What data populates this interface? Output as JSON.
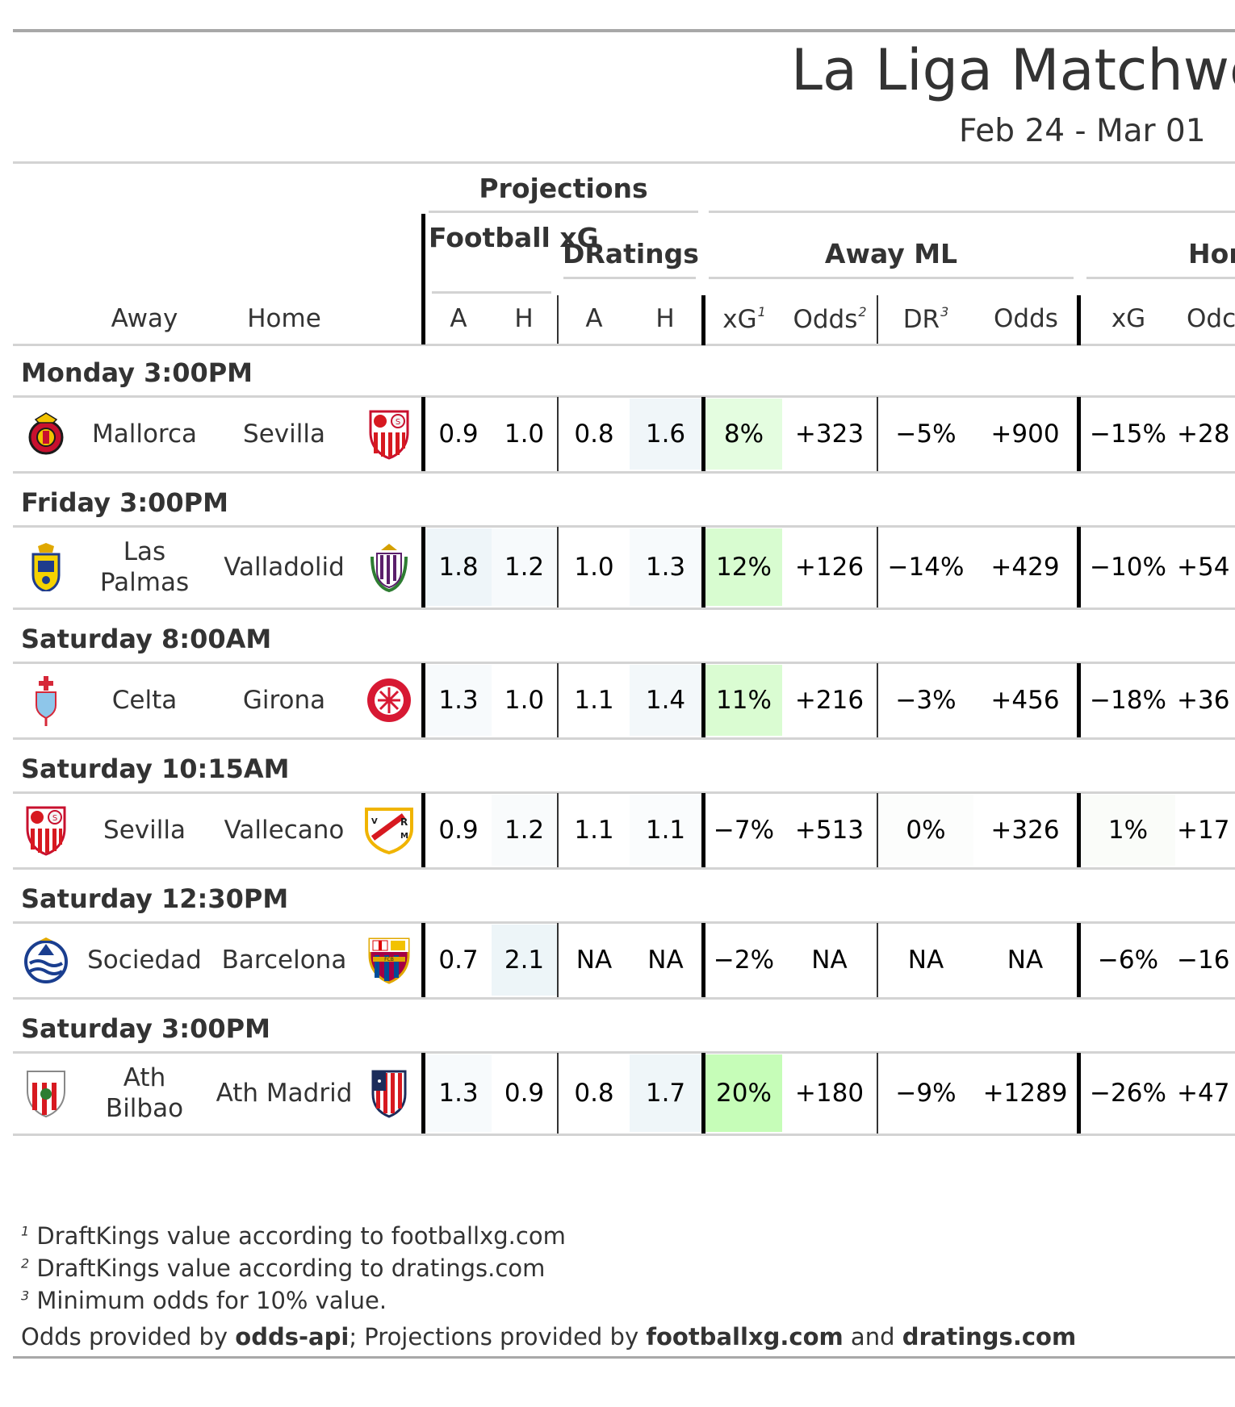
{
  "title": "La Liga Matchwe",
  "subtitle": "Feb 24 - Mar 01",
  "spanners": {
    "projections": "Projections",
    "football_xg": "Football xG",
    "dratings": "DRatings",
    "away_ml": "Away ML",
    "home_ml": "Hor"
  },
  "columns": {
    "away": "Away",
    "home": "Home",
    "fxg_a": "A",
    "fxg_h": "H",
    "dr_a": "A",
    "dr_h": "H",
    "away_xg": "xG",
    "away_xg_sup": "1",
    "away_odds": "Odds",
    "away_odds_sup": "2",
    "away_dr": "DR",
    "away_dr_sup": "3",
    "away_odds2": "Odds",
    "home_xg": "xG",
    "home_odds": "Odc"
  },
  "groups": [
    {
      "label": "Monday 3:00PM",
      "rows": [
        {
          "away": "Mallorca",
          "home": "Sevilla",
          "away_logo": "mallorca-crest",
          "home_logo": "sevilla-crest",
          "fxg_a": "0.9",
          "fxg_h": "1.0",
          "dr_a": "0.8",
          "dr_h": "1.6",
          "a_xg": "8%",
          "a_odds": "+323",
          "a_dr": "−5%",
          "a_odds2": "+900",
          "h_xg": "−15%",
          "h_odds": "+28",
          "bg": {
            "fxg_a": "#ffffff",
            "fxg_h": "#ffffff",
            "dr_a": "#ffffff",
            "dr_h": "#f0f6f9",
            "a_xg": "#e4fde0",
            "a_odds": "#ffffff",
            "a_dr": "#ffffff",
            "h_xg": "#ffffff"
          }
        }
      ]
    },
    {
      "label": "Friday 3:00PM",
      "rows": [
        {
          "away": "Las Palmas",
          "home": "Valladolid",
          "away_logo": "las-palmas-crest",
          "home_logo": "valladolid-crest",
          "fxg_a": "1.8",
          "fxg_h": "1.2",
          "dr_a": "1.0",
          "dr_h": "1.3",
          "a_xg": "12%",
          "a_odds": "+126",
          "a_dr": "−14%",
          "a_odds2": "+429",
          "h_xg": "−10%",
          "h_odds": "+54",
          "bg": {
            "fxg_a": "#eef5f9",
            "fxg_h": "#f7fafc",
            "dr_a": "#ffffff",
            "dr_h": "#f7fafc",
            "a_xg": "#d8fcd0",
            "a_odds": "#ffffff",
            "a_dr": "#ffffff",
            "h_xg": "#ffffff"
          }
        }
      ]
    },
    {
      "label": "Saturday 8:00AM",
      "rows": [
        {
          "away": "Celta",
          "home": "Girona",
          "away_logo": "celta-crest",
          "home_logo": "girona-crest",
          "fxg_a": "1.3",
          "fxg_h": "1.0",
          "dr_a": "1.1",
          "dr_h": "1.4",
          "a_xg": "11%",
          "a_odds": "+216",
          "a_dr": "−3%",
          "a_odds2": "+456",
          "h_xg": "−18%",
          "h_odds": "+36",
          "bg": {
            "fxg_a": "#f7fafc",
            "fxg_h": "#ffffff",
            "dr_a": "#ffffff",
            "dr_h": "#f3f8fa",
            "a_xg": "#dafcd2",
            "a_odds": "#ffffff",
            "a_dr": "#ffffff",
            "h_xg": "#ffffff"
          }
        }
      ]
    },
    {
      "label": "Saturday 10:15AM",
      "rows": [
        {
          "away": "Sevilla",
          "home": "Vallecano",
          "away_logo": "sevilla-crest",
          "home_logo": "vallecano-crest",
          "fxg_a": "0.9",
          "fxg_h": "1.2",
          "dr_a": "1.1",
          "dr_h": "1.1",
          "a_xg": "−7%",
          "a_odds": "+513",
          "a_dr": "0%",
          "a_odds2": "+326",
          "h_xg": "1%",
          "h_odds": "+17",
          "bg": {
            "fxg_a": "#ffffff",
            "fxg_h": "#f9fbfc",
            "dr_a": "#ffffff",
            "dr_h": "#fafcfd",
            "a_xg": "#ffffff",
            "a_odds": "#ffffff",
            "a_dr": "#fcfdfc",
            "h_xg": "#fafcf9"
          }
        }
      ]
    },
    {
      "label": "Saturday 12:30PM",
      "rows": [
        {
          "away": "Sociedad",
          "home": "Barcelona",
          "away_logo": "sociedad-crest",
          "home_logo": "barcelona-crest",
          "fxg_a": "0.7",
          "fxg_h": "2.1",
          "dr_a": "NA",
          "dr_h": "NA",
          "a_xg": "−2%",
          "a_odds": "NA",
          "a_dr": "NA",
          "a_odds2": "NA",
          "h_xg": "−6%",
          "h_odds": "−16",
          "bg": {
            "fxg_a": "#ffffff",
            "fxg_h": "#edf5f8",
            "dr_a": "#ffffff",
            "dr_h": "#ffffff",
            "a_xg": "#ffffff",
            "a_odds": "#ffffff",
            "a_dr": "#ffffff",
            "h_xg": "#ffffff"
          }
        }
      ]
    },
    {
      "label": "Saturday 3:00PM",
      "rows": [
        {
          "away": "Ath Bilbao",
          "home": "Ath Madrid",
          "away_logo": "athletic-bilbao-crest",
          "home_logo": "atletico-madrid-crest",
          "fxg_a": "1.3",
          "fxg_h": "0.9",
          "dr_a": "0.8",
          "dr_h": "1.7",
          "a_xg": "20%",
          "a_odds": "+180",
          "a_dr": "−9%",
          "a_odds2": "+1289",
          "h_xg": "−26%",
          "h_odds": "+47",
          "bg": {
            "fxg_a": "#f7fafc",
            "fxg_h": "#ffffff",
            "dr_a": "#ffffff",
            "dr_h": "#eff6f9",
            "a_xg": "#c6fdb8",
            "a_odds": "#ffffff",
            "a_dr": "#ffffff",
            "h_xg": "#ffffff"
          }
        }
      ]
    }
  ],
  "footnotes": [
    {
      "mark": "1",
      "text": "DraftKings value according to footballxg.com"
    },
    {
      "mark": "2",
      "text": "DraftKings value according to dratings.com"
    },
    {
      "mark": "3",
      "text": "Minimum odds for 10% value."
    }
  ],
  "source": {
    "p1": "Odds provided by ",
    "b1": "odds-api",
    "p2": "; Projections provided by ",
    "b2": "footballxg.com",
    "p3": " and ",
    "b3": "dratings.com"
  }
}
